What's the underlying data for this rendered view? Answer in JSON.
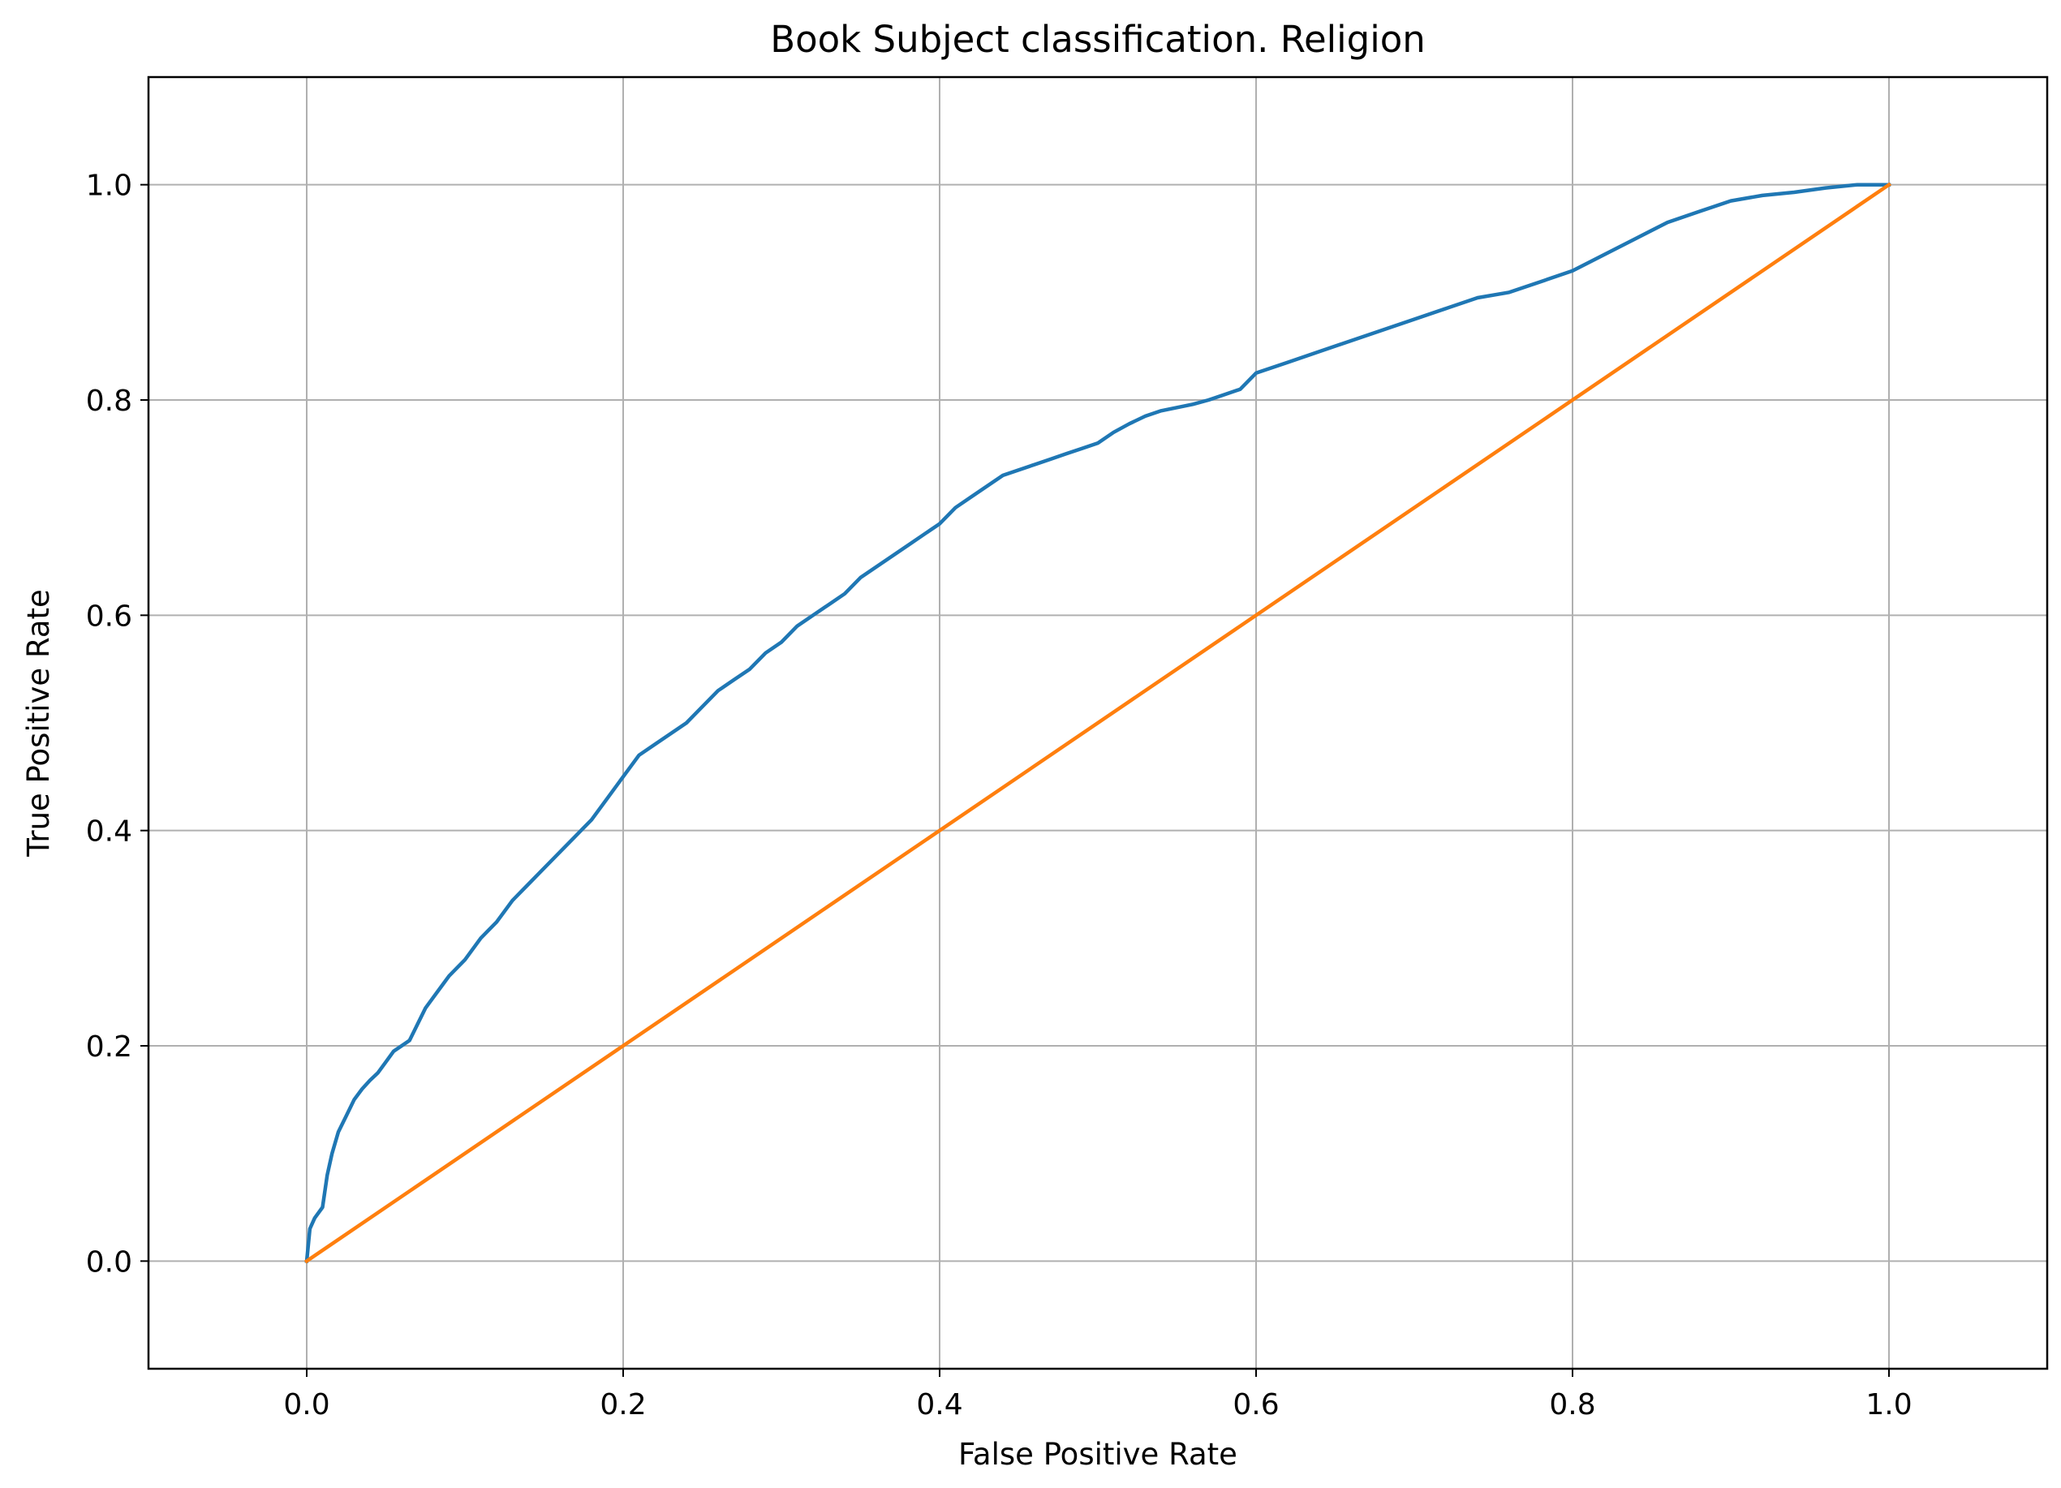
{
  "chart_data": {
    "type": "line",
    "title": "Book Subject classification. Religion",
    "xlabel": "False Positive Rate",
    "ylabel": "True Positive Rate",
    "xlim": [
      -0.1,
      1.1
    ],
    "ylim": [
      -0.1,
      1.1
    ],
    "grid": true,
    "x_ticks": [
      0.0,
      0.2,
      0.4,
      0.6,
      0.8,
      1.0
    ],
    "y_ticks": [
      0.0,
      0.2,
      0.4,
      0.6,
      0.8,
      1.0
    ],
    "x_tick_labels": [
      "0.0",
      "0.2",
      "0.4",
      "0.6",
      "0.8",
      "1.0"
    ],
    "y_tick_labels": [
      "0.0",
      "0.2",
      "0.4",
      "0.6",
      "0.8",
      "1.0"
    ],
    "series": [
      {
        "color": "#1f77b4",
        "x": [
          0.0,
          0.002,
          0.005,
          0.01,
          0.013,
          0.016,
          0.02,
          0.025,
          0.03,
          0.035,
          0.04,
          0.045,
          0.05,
          0.055,
          0.06,
          0.065,
          0.07,
          0.075,
          0.08,
          0.085,
          0.09,
          0.1,
          0.11,
          0.12,
          0.13,
          0.14,
          0.15,
          0.16,
          0.17,
          0.18,
          0.19,
          0.2,
          0.21,
          0.22,
          0.23,
          0.24,
          0.25,
          0.26,
          0.27,
          0.28,
          0.29,
          0.3,
          0.31,
          0.32,
          0.33,
          0.34,
          0.35,
          0.36,
          0.37,
          0.38,
          0.39,
          0.4,
          0.41,
          0.42,
          0.43,
          0.44,
          0.45,
          0.46,
          0.47,
          0.48,
          0.49,
          0.5,
          0.51,
          0.52,
          0.53,
          0.54,
          0.55,
          0.56,
          0.57,
          0.58,
          0.59,
          0.6,
          0.62,
          0.64,
          0.66,
          0.68,
          0.7,
          0.72,
          0.74,
          0.76,
          0.78,
          0.8,
          0.82,
          0.84,
          0.86,
          0.88,
          0.9,
          0.92,
          0.94,
          0.96,
          0.98,
          1.0
        ],
        "y": [
          0.0,
          0.03,
          0.04,
          0.05,
          0.08,
          0.1,
          0.12,
          0.135,
          0.15,
          0.16,
          0.168,
          0.175,
          0.185,
          0.195,
          0.2,
          0.205,
          0.22,
          0.235,
          0.245,
          0.255,
          0.265,
          0.28,
          0.3,
          0.315,
          0.335,
          0.35,
          0.365,
          0.38,
          0.395,
          0.41,
          0.43,
          0.45,
          0.47,
          0.48,
          0.49,
          0.5,
          0.515,
          0.53,
          0.54,
          0.55,
          0.565,
          0.575,
          0.59,
          0.6,
          0.61,
          0.62,
          0.635,
          0.645,
          0.655,
          0.665,
          0.675,
          0.685,
          0.7,
          0.71,
          0.72,
          0.73,
          0.735,
          0.74,
          0.745,
          0.75,
          0.755,
          0.76,
          0.77,
          0.778,
          0.785,
          0.79,
          0.793,
          0.796,
          0.8,
          0.805,
          0.81,
          0.825,
          0.835,
          0.845,
          0.855,
          0.865,
          0.875,
          0.885,
          0.895,
          0.9,
          0.91,
          0.92,
          0.935,
          0.95,
          0.965,
          0.975,
          0.985,
          0.99,
          0.993,
          0.997,
          1.0,
          1.0
        ]
      },
      {
        "color": "#ff7f0e",
        "x": [
          0.0,
          1.0
        ],
        "y": [
          0.0,
          1.0
        ]
      }
    ]
  }
}
